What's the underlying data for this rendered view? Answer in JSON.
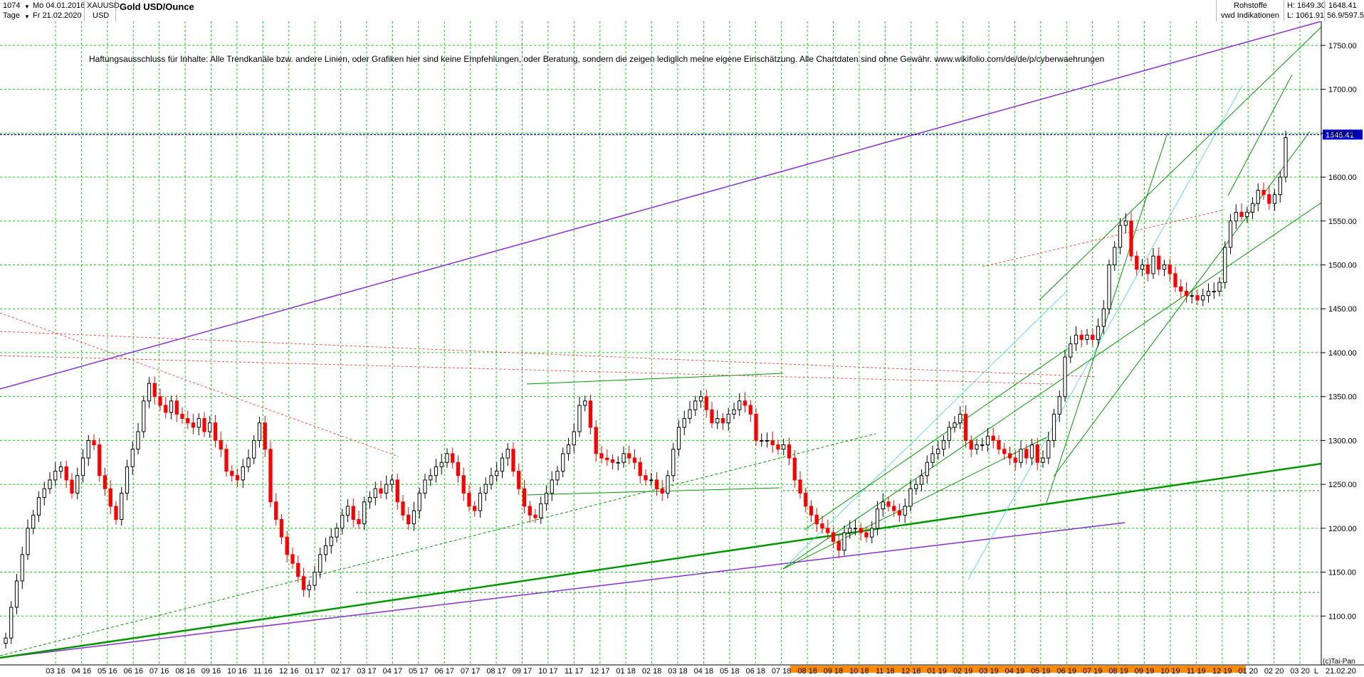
{
  "header": {
    "bar_count": "1074",
    "from_date": "Mo 04.01.2016",
    "interval": "Tage",
    "to_date": "Fr 21.02.2020",
    "symbol": "XAUUSD",
    "currency": "USD",
    "title": "Gold USD/Ounce",
    "category": "Rohstoffe",
    "source": "vwd Indikationen",
    "high": "H: 1649.30",
    "low": "L: 1061.91",
    "last": "1648.41",
    "extra": "56.9/597.5"
  },
  "disclaimer": "Haftungsausschluss für Inhalte: Alle Trendkanäle bzw. andere Linien, oder Grafiken hier sind keine Empfehlungen, oder Beratung, sondern die zeigen lediglich meine eigene Einschätzung. Alle Chartdaten sind ohne Gewähr.  www.wikifolio.com/de/de/p/cyberwaehrungen",
  "footer": {
    "copyright": "(c)Tai-Pan",
    "scale_mode": "L",
    "end_date": "21.02.20"
  },
  "colors": {
    "up_candle": "#000000",
    "down_candle": "#ff0000",
    "grid": "#00dd00",
    "price_line": "#0000cc",
    "price_label_bg": "#0000cc",
    "trend_green": "#009900",
    "trend_purple": "#8a2be2",
    "trend_cyan": "#66dddd",
    "trend_red": "#ff4444",
    "x_highlight": "#ff8c00"
  },
  "chart_data": {
    "type": "candlestick",
    "ylim": [
      1050,
      1775
    ],
    "y_ticks": [
      1100,
      1150,
      1200,
      1250,
      1300,
      1350,
      1400,
      1450,
      1500,
      1550,
      1600,
      1650,
      1700,
      1750
    ],
    "y_tick_labels": [
      "1100.00",
      "1150.00",
      "1200.00",
      "1250.00",
      "1300.00",
      "1350.00",
      "1400.00",
      "1450.00",
      "1500.00",
      "1550.00",
      "1600.00",
      "1650.00",
      "1700.00",
      "1750.00"
    ],
    "x_tick_labels": [
      "03 16",
      "04 16",
      "05 16",
      "06 16",
      "07 16",
      "08 16",
      "09 16",
      "10 16",
      "11 16",
      "12 16",
      "01 17",
      "02 17",
      "03 17",
      "04 17",
      "05 17",
      "06 17",
      "07 17",
      "08 17",
      "09 17",
      "10 17",
      "11 17",
      "12 17",
      "01 18",
      "02 18",
      "03 18",
      "04 18",
      "05 18",
      "06 18",
      "07 18",
      "08 18",
      "09 18",
      "10 18",
      "11 18",
      "12 18",
      "01 19",
      "02 19",
      "03 19",
      "04 19",
      "05 19",
      "06 19",
      "07 19",
      "08 19",
      "09 19",
      "10 19",
      "11 19",
      "12 19",
      "01 20",
      "02 20",
      "03 20"
    ],
    "last_price": 1648.41,
    "last_price_label": "1648.41",
    "series": [
      {
        "values": [
          1075,
          1110,
          1140,
          1170,
          1200,
          1215,
          1235,
          1245,
          1255,
          1265,
          1270,
          1255,
          1240,
          1260,
          1280,
          1300,
          1295,
          1260,
          1245,
          1225,
          1210,
          1240,
          1270,
          1290,
          1310,
          1345,
          1365,
          1350,
          1340,
          1332,
          1345,
          1330,
          1325,
          1320,
          1315,
          1325,
          1310,
          1320,
          1300,
          1290,
          1265,
          1260,
          1255,
          1270,
          1280,
          1300,
          1320,
          1290,
          1230,
          1210,
          1190,
          1170,
          1160,
          1145,
          1130,
          1135,
          1150,
          1170,
          1180,
          1190,
          1200,
          1215,
          1225,
          1210,
          1205,
          1230,
          1235,
          1245,
          1240,
          1250,
          1255,
          1230,
          1215,
          1205,
          1220,
          1240,
          1255,
          1260,
          1270,
          1275,
          1285,
          1275,
          1260,
          1240,
          1225,
          1220,
          1240,
          1250,
          1260,
          1265,
          1280,
          1290,
          1265,
          1245,
          1225,
          1215,
          1212,
          1228,
          1240,
          1255,
          1265,
          1285,
          1295,
          1310,
          1340,
          1345,
          1315,
          1285,
          1280,
          1278,
          1275,
          1275,
          1285,
          1280,
          1275,
          1260,
          1255,
          1255,
          1245,
          1240,
          1260,
          1290,
          1315,
          1325,
          1335,
          1345,
          1350,
          1335,
          1320,
          1325,
          1320,
          1330,
          1335,
          1345,
          1340,
          1330,
          1300,
          1300,
          1300,
          1295,
          1290,
          1295,
          1280,
          1255,
          1240,
          1225,
          1215,
          1205,
          1200,
          1195,
          1185,
          1175,
          1195,
          1200,
          1200,
          1195,
          1190,
          1200,
          1222,
          1230,
          1225,
          1220,
          1215,
          1225,
          1245,
          1250,
          1260,
          1275,
          1285,
          1290,
          1300,
          1315,
          1320,
          1330,
          1300,
          1290,
          1295,
          1295,
          1305,
          1300,
          1290,
          1285,
          1280,
          1275,
          1290,
          1280,
          1295,
          1275,
          1280,
          1300,
          1330,
          1350,
          1395,
          1410,
          1420,
          1415,
          1420,
          1415,
          1430,
          1450,
          1500,
          1520,
          1545,
          1550,
          1510,
          1495,
          1500,
          1490,
          1510,
          1495,
          1500,
          1490,
          1475,
          1470,
          1465,
          1465,
          1460,
          1465,
          1470,
          1470,
          1480,
          1520,
          1550,
          1560,
          1555,
          1560,
          1570,
          1585,
          1580,
          1570,
          1580,
          1600,
          1645
        ]
      }
    ]
  }
}
